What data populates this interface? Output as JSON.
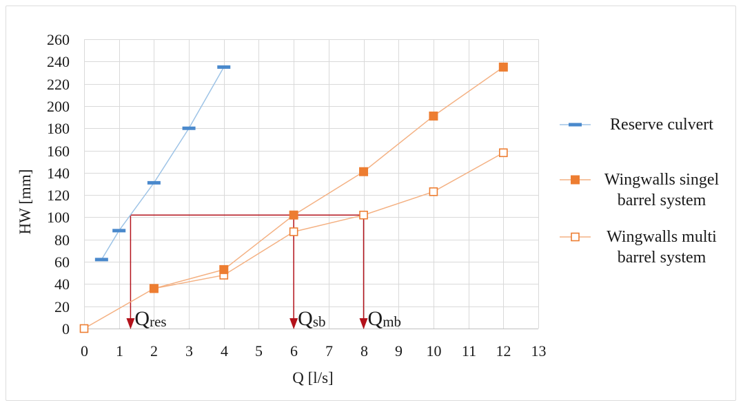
{
  "chart_data": {
    "type": "line",
    "xlabel": "Q [l/s]",
    "ylabel": "HW [mm]",
    "xlim": [
      0,
      13
    ],
    "ylim": [
      0,
      260
    ],
    "xticks": [
      0,
      1,
      2,
      3,
      4,
      5,
      6,
      7,
      8,
      9,
      10,
      11,
      12,
      13
    ],
    "yticks": [
      0,
      20,
      40,
      60,
      80,
      100,
      120,
      140,
      160,
      180,
      200,
      220,
      240,
      260
    ],
    "grid": true,
    "legend_position": "right",
    "series": [
      {
        "name": "Reserve culvert",
        "marker": "dash",
        "color": "#4A89CC",
        "line_color": "#9DC3E6",
        "x": [
          0.5,
          1,
          2,
          3,
          4
        ],
        "y": [
          62,
          88,
          131,
          180,
          235
        ]
      },
      {
        "name": "Wingwalls singel barrel system",
        "marker": "square",
        "color": "#ED7D31",
        "line_color": "#F4B183",
        "x": [
          2,
          4,
          6,
          8,
          10,
          12
        ],
        "y": [
          36,
          53,
          102,
          141,
          191,
          235
        ]
      },
      {
        "name": "Wingwalls multi barrel system",
        "marker": "square-open",
        "color": "#ED7D31",
        "line_color": "#F4B183",
        "x": [
          0,
          2,
          4,
          6,
          8,
          10,
          12
        ],
        "y": [
          0,
          36,
          48,
          87,
          102,
          123,
          158
        ]
      }
    ],
    "annotations": {
      "color": "#B3121B",
      "hw_level": 102,
      "guides": [
        {
          "x": 1.33,
          "q": "Q",
          "sub": "res"
        },
        {
          "x": 6,
          "q": "Q",
          "sub": "sb"
        },
        {
          "x": 8,
          "q": "Q",
          "sub": "mb"
        }
      ]
    }
  }
}
